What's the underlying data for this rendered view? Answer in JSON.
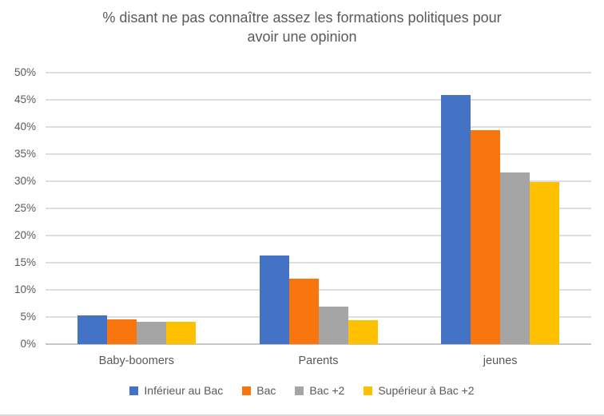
{
  "title": {
    "line1": "% disant ne pas connaître assez les formations politiques pour",
    "line2": "avoir une opinion"
  },
  "chart_data": {
    "type": "bar",
    "title": "% disant ne pas connaître assez les formations politiques pour avoir une opinion",
    "categories": [
      "Baby-boomers",
      "Parents",
      "jeunes"
    ],
    "series": [
      {
        "name": "Inférieur au Bac",
        "color": "#4472C4",
        "values": [
          5.3,
          16.3,
          45.9
        ]
      },
      {
        "name": "Bac",
        "color": "#F8760D",
        "values": [
          4.6,
          12.1,
          39.4
        ]
      },
      {
        "name": "Bac +2",
        "color": "#A5A5A5",
        "values": [
          4.1,
          6.9,
          31.6
        ]
      },
      {
        "name": "Supérieur à Bac +2",
        "color": "#FFC000",
        "values": [
          4.1,
          4.4,
          29.9
        ]
      }
    ],
    "xlabel": "",
    "ylabel": "",
    "ylim": [
      0,
      50
    ],
    "ytick_step": 5,
    "ytick_labels": [
      "0%",
      "5%",
      "10%",
      "15%",
      "20%",
      "25%",
      "30%",
      "35%",
      "40%",
      "45%",
      "50%"
    ],
    "grid": true,
    "legend_position": "bottom"
  },
  "colors": {
    "title_text": "#595959",
    "axis_text": "#595959",
    "legend_text": "#595959",
    "gridline": "#DEDEDE",
    "axis_line": "#C6C6C6",
    "background": "#FFFFFF",
    "bottom_divider": "#D9D9D9"
  }
}
